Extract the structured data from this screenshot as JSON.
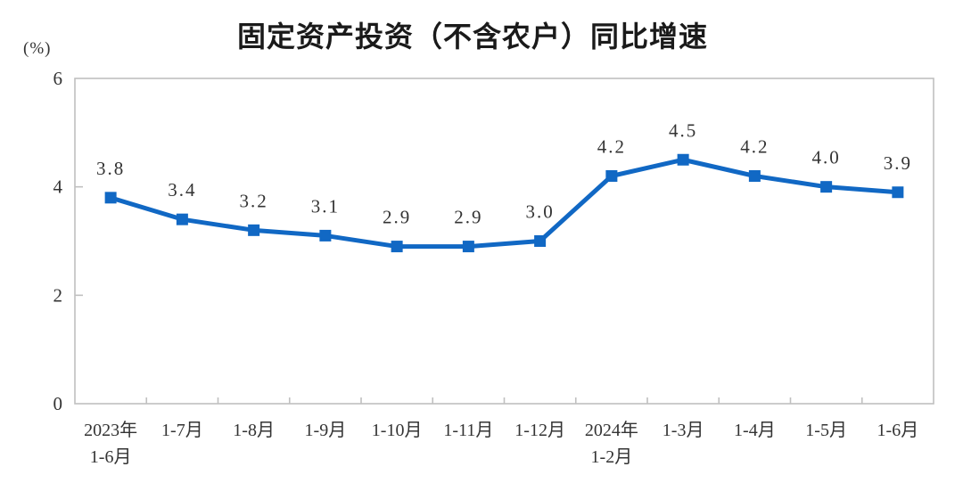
{
  "chart_data": {
    "type": "line",
    "title": "固定资产投资（不含农户）同比增速",
    "unit_label": "(%)",
    "categories": [
      "2023年\n1-6月",
      "1-7月",
      "1-8月",
      "1-9月",
      "1-10月",
      "1-11月",
      "1-12月",
      "2024年\n1-2月",
      "1-3月",
      "1-4月",
      "1-5月",
      "1-6月"
    ],
    "values": [
      3.8,
      3.4,
      3.2,
      3.1,
      2.9,
      2.9,
      3.0,
      4.2,
      4.5,
      4.2,
      4.0,
      3.9
    ],
    "point_labels": [
      "3.8",
      "3.4",
      "3.2",
      "3.1",
      "2.9",
      "2.9",
      "3.0",
      "4.2",
      "4.5",
      "4.2",
      "4.0",
      "3.9"
    ],
    "xlabel": "",
    "ylabel": "(%)",
    "ylim": [
      0,
      6
    ],
    "yticks": [
      0,
      2,
      4,
      6
    ],
    "grid": false,
    "legend": "none",
    "marker": "square",
    "colors": {
      "line": "#1168c4",
      "marker": "#1168c4",
      "axis": "#c0c0c0",
      "text": "#333333",
      "title": "#1a1a1a"
    }
  }
}
